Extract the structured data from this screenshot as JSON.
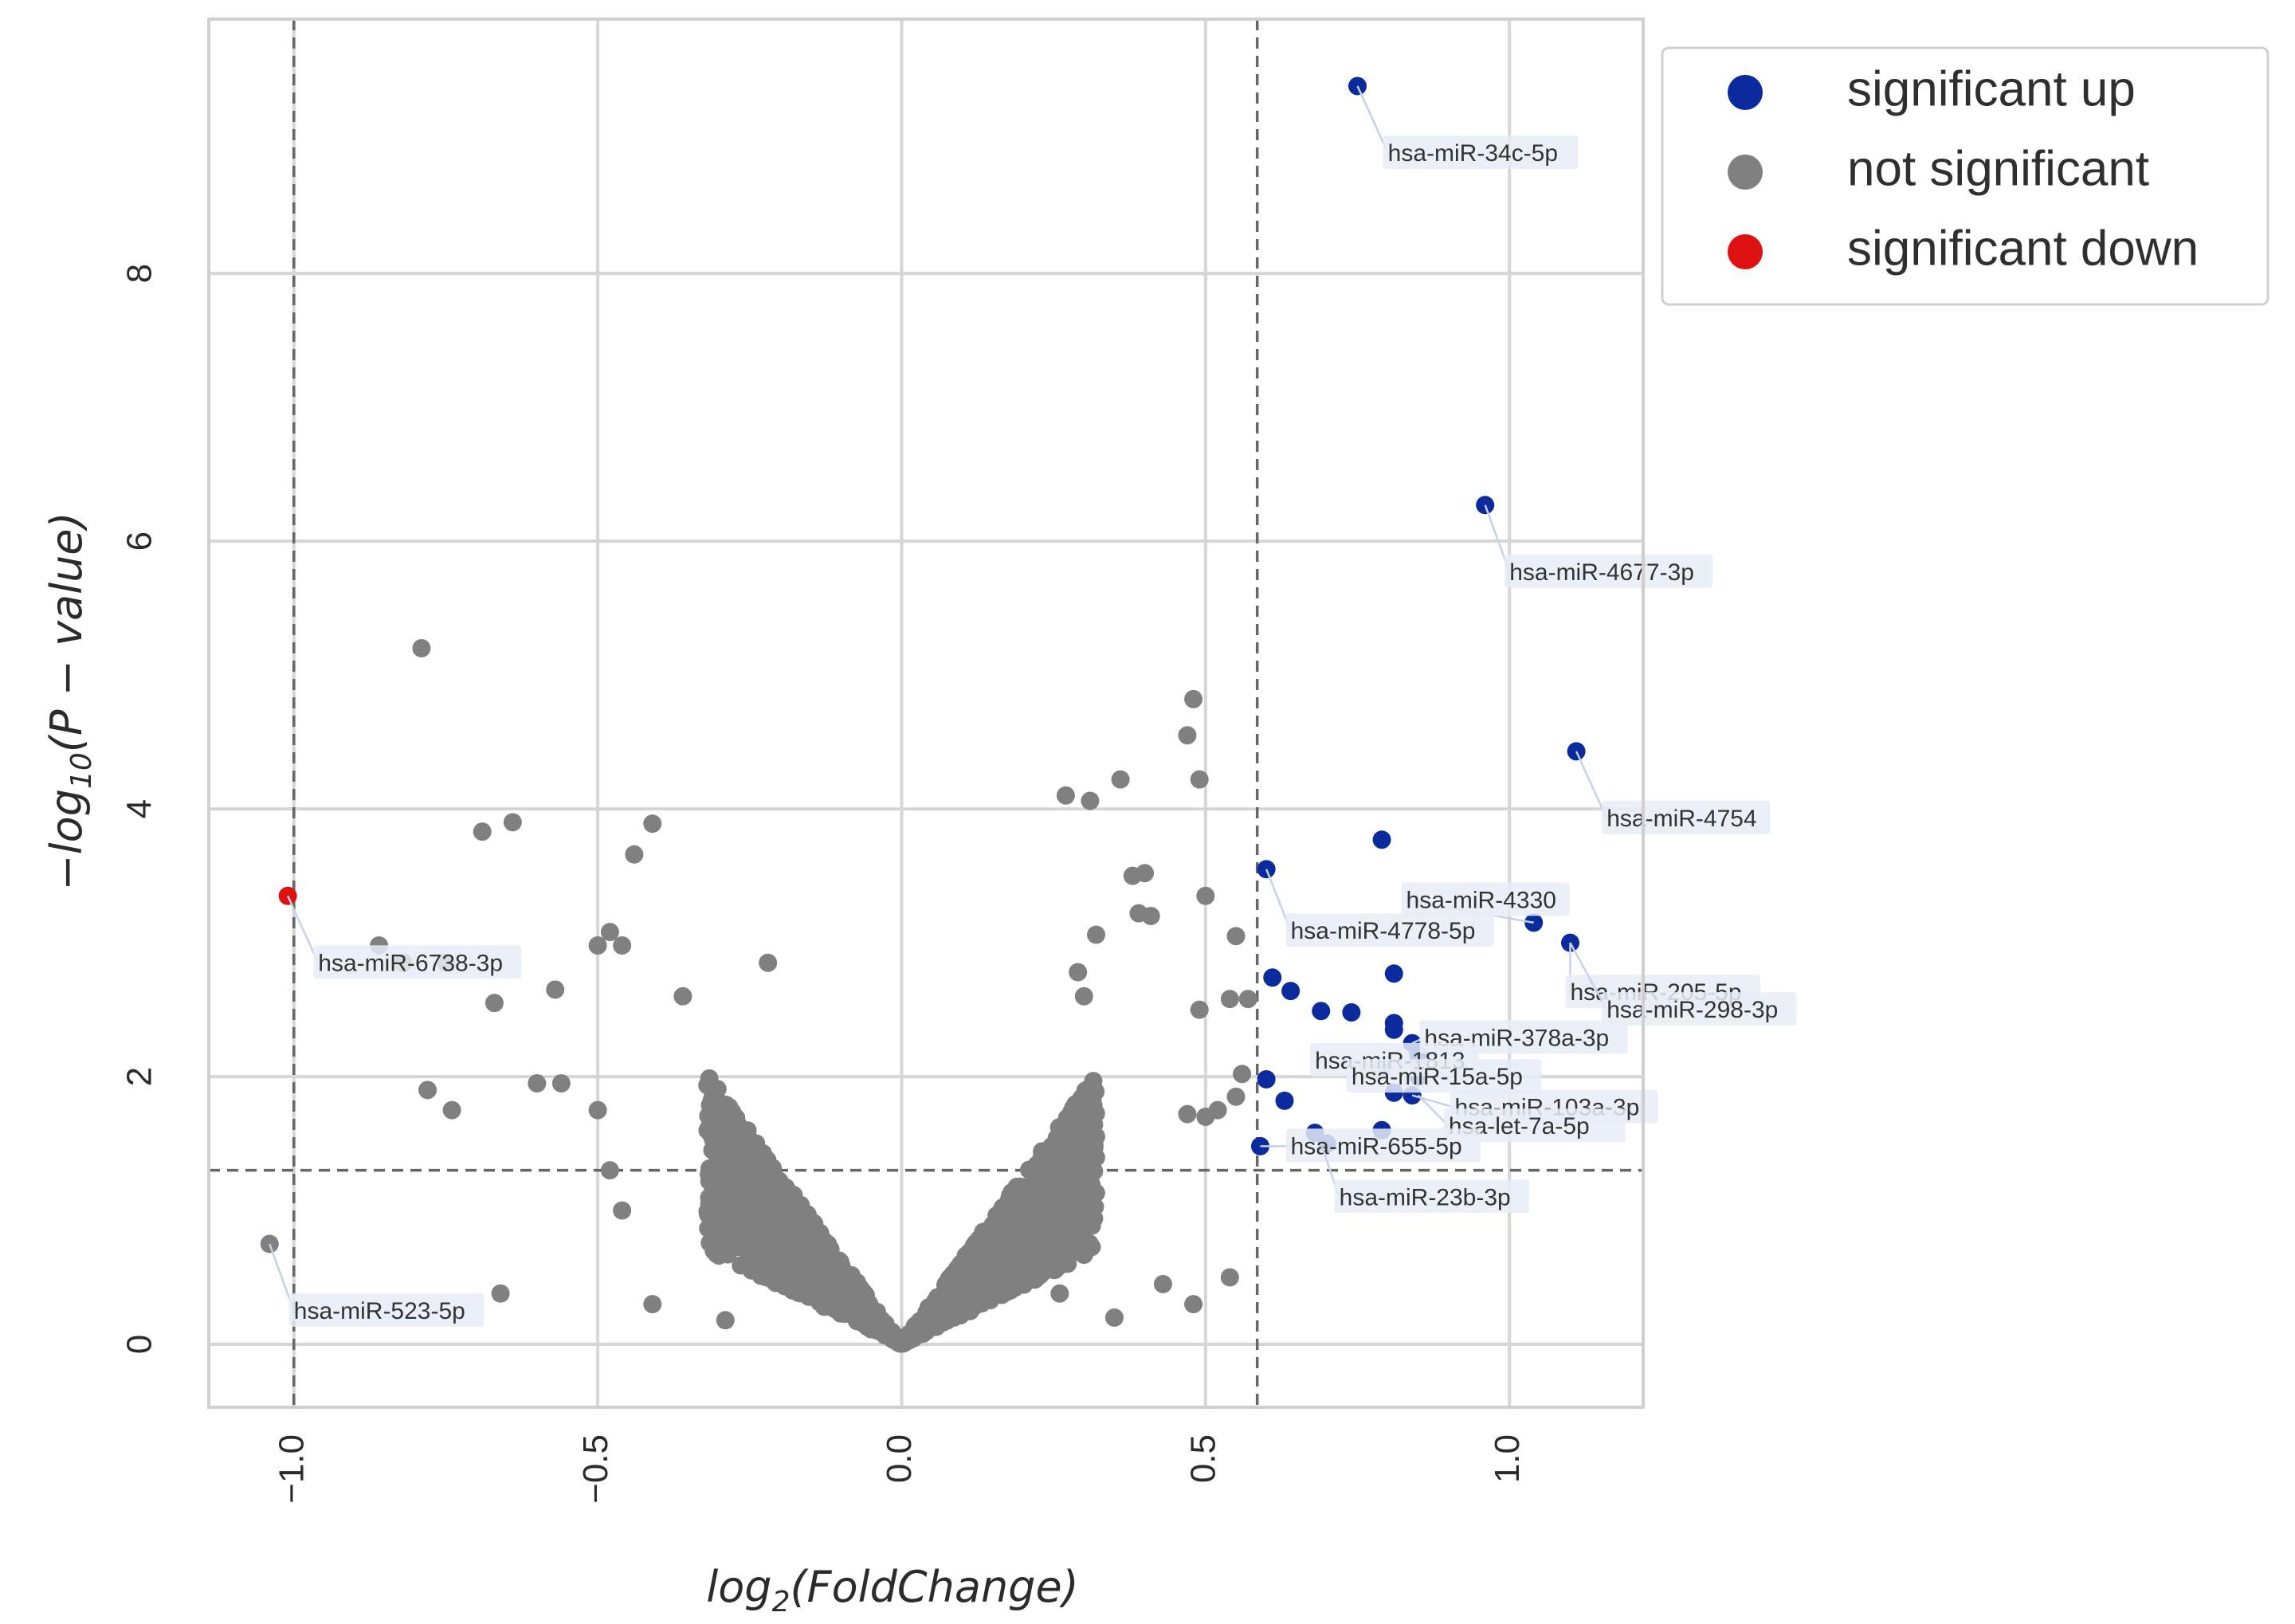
{
  "chart_data": {
    "type": "scatter",
    "title": "",
    "xlabel": "log2(FoldChange)",
    "ylabel": "-log10(P - value)",
    "xlim": [
      -1.14,
      1.22
    ],
    "ylim": [
      -0.47,
      9.9
    ],
    "x_ticks": [
      -1.0,
      -0.5,
      0.0,
      0.5,
      1.0
    ],
    "x_tick_labels": [
      "−1.0",
      "−0.5",
      "0.0",
      "0.5",
      "1.0"
    ],
    "y_ticks": [
      0,
      2,
      4,
      6,
      8
    ],
    "y_tick_labels": [
      "0",
      "2",
      "4",
      "6",
      "8"
    ],
    "grid": true,
    "thresholds": {
      "log2fc": [
        -1.0,
        0.585
      ],
      "neg_log10_p": 1.3
    },
    "colors": {
      "up": "#0a2a9e",
      "ns": "#808080",
      "down": "#dd1111",
      "grid": "#d6d6d6",
      "frame": "#cfcfcf",
      "threshold": "#666666",
      "label_bg": "#e8ecf6"
    },
    "legend": {
      "position": "top-right",
      "entries": [
        {
          "key": "up",
          "label": "significant up"
        },
        {
          "key": "ns",
          "label": "not significant"
        },
        {
          "key": "down",
          "label": "significant down"
        }
      ]
    },
    "series": [
      {
        "key": "up",
        "name": "significant up",
        "points": [
          [
            0.75,
            9.4
          ],
          [
            0.96,
            6.27
          ],
          [
            1.11,
            4.43
          ],
          [
            0.79,
            3.77
          ],
          [
            0.6,
            3.55
          ],
          [
            1.04,
            3.15
          ],
          [
            1.1,
            3.0
          ],
          [
            0.81,
            2.77
          ],
          [
            0.61,
            2.74
          ],
          [
            0.64,
            2.64
          ],
          [
            0.69,
            2.49
          ],
          [
            0.74,
            2.48
          ],
          [
            0.81,
            2.4
          ],
          [
            0.81,
            2.35
          ],
          [
            0.84,
            2.25
          ],
          [
            0.85,
            2.16
          ],
          [
            0.79,
            2.05
          ],
          [
            0.6,
            1.98
          ],
          [
            0.85,
            2.0
          ],
          [
            0.81,
            1.88
          ],
          [
            0.84,
            1.86
          ],
          [
            0.63,
            1.82
          ],
          [
            0.68,
            1.58
          ],
          [
            0.79,
            1.6
          ],
          [
            0.7,
            1.5
          ],
          [
            0.59,
            1.48
          ]
        ]
      },
      {
        "key": "down",
        "name": "significant down",
        "points": [
          [
            -1.01,
            3.35
          ]
        ]
      },
      {
        "key": "ns",
        "name": "not significant",
        "points": [
          [
            -0.79,
            5.2
          ],
          [
            -0.69,
            3.83
          ],
          [
            -0.64,
            3.9
          ],
          [
            -0.41,
            3.89
          ],
          [
            -0.44,
            3.66
          ],
          [
            -0.86,
            2.98
          ],
          [
            -0.82,
            2.85
          ],
          [
            -0.75,
            2.85
          ],
          [
            -0.5,
            2.98
          ],
          [
            -0.48,
            3.08
          ],
          [
            -0.46,
            2.98
          ],
          [
            -0.57,
            2.65
          ],
          [
            -0.67,
            2.55
          ],
          [
            -0.36,
            2.6
          ],
          [
            -0.22,
            2.85
          ],
          [
            -0.78,
            1.9
          ],
          [
            -0.74,
            1.75
          ],
          [
            -0.6,
            1.95
          ],
          [
            -0.56,
            1.95
          ],
          [
            -0.5,
            1.75
          ],
          [
            -0.48,
            1.3
          ],
          [
            -0.46,
            1.0
          ],
          [
            -0.66,
            0.38
          ],
          [
            -0.41,
            0.3
          ],
          [
            -1.04,
            0.75
          ],
          [
            -0.29,
            0.18
          ],
          [
            0.48,
            4.82
          ],
          [
            0.47,
            4.55
          ],
          [
            0.49,
            4.22
          ],
          [
            0.36,
            4.22
          ],
          [
            0.27,
            4.1
          ],
          [
            0.31,
            4.06
          ],
          [
            0.38,
            3.5
          ],
          [
            0.4,
            3.52
          ],
          [
            0.5,
            3.35
          ],
          [
            0.39,
            3.22
          ],
          [
            0.41,
            3.2
          ],
          [
            0.32,
            3.06
          ],
          [
            0.55,
            3.05
          ],
          [
            0.29,
            2.78
          ],
          [
            0.3,
            2.6
          ],
          [
            0.54,
            2.58
          ],
          [
            0.57,
            2.58
          ],
          [
            0.49,
            2.5
          ],
          [
            0.56,
            2.02
          ],
          [
            0.55,
            1.85
          ],
          [
            0.52,
            1.75
          ],
          [
            0.5,
            1.7
          ],
          [
            0.47,
            1.72
          ],
          [
            0.54,
            0.5
          ],
          [
            0.35,
            0.2
          ],
          [
            0.26,
            0.38
          ],
          [
            0.48,
            0.3
          ],
          [
            0.43,
            0.45
          ]
        ]
      }
    ],
    "ns_cloud": {
      "count": 1500,
      "max_abs_log2fc": 0.32,
      "slope": 6.3,
      "seed": 7
    },
    "annotations": [
      {
        "text": "hsa-miR-34c-5p",
        "point": [
          0.75,
          9.4
        ],
        "at": [
          0.8,
          8.9
        ]
      },
      {
        "text": "hsa-miR-4677-3p",
        "point": [
          0.96,
          6.27
        ],
        "at": [
          1.0,
          5.77
        ]
      },
      {
        "text": "hsa-miR-4754",
        "point": [
          1.11,
          4.43
        ],
        "at": [
          1.16,
          3.93
        ]
      },
      {
        "text": "hsa-miR-4330",
        "point": [
          1.04,
          3.15
        ],
        "at": [
          0.83,
          3.32
        ]
      },
      {
        "text": "hsa-miR-4778-5p",
        "point": [
          0.6,
          3.55
        ],
        "at": [
          0.64,
          3.09
        ]
      },
      {
        "text": "hsa-miR-205-5p",
        "point": [
          1.1,
          3.0
        ],
        "at": [
          1.1,
          2.63
        ]
      },
      {
        "text": "hsa-miR-298-3p",
        "point": [
          1.1,
          3.0
        ],
        "at": [
          1.16,
          2.5
        ]
      },
      {
        "text": "hsa-miR-378a-3p",
        "point": [
          0.84,
          2.25
        ],
        "at": [
          0.86,
          2.29
        ]
      },
      {
        "text": "hsa-miR-1813",
        "point": [
          0.79,
          2.05
        ],
        "at": [
          0.68,
          2.12
        ]
      },
      {
        "text": "hsa-miR-15a-5p",
        "point": [
          0.81,
          2.0
        ],
        "at": [
          0.74,
          2.0
        ]
      },
      {
        "text": "hsa-miR-103a-3p",
        "point": [
          0.84,
          1.86
        ],
        "at": [
          0.91,
          1.77
        ]
      },
      {
        "text": "hsa-let-7a-5p",
        "point": [
          0.85,
          1.86
        ],
        "at": [
          0.9,
          1.63
        ]
      },
      {
        "text": "hsa-miR-655-5p",
        "point": [
          0.59,
          1.48
        ],
        "at": [
          0.64,
          1.48
        ]
      },
      {
        "text": "hsa-miR-23b-3p",
        "point": [
          0.69,
          1.5
        ],
        "at": [
          0.72,
          1.1
        ]
      },
      {
        "text": "hsa-miR-6738-3p",
        "point": [
          -1.01,
          3.35
        ],
        "at": [
          -0.96,
          2.85
        ]
      },
      {
        "text": "hsa-miR-523-5p",
        "point": [
          -1.04,
          0.75
        ],
        "at": [
          -1.0,
          0.25
        ]
      }
    ]
  }
}
